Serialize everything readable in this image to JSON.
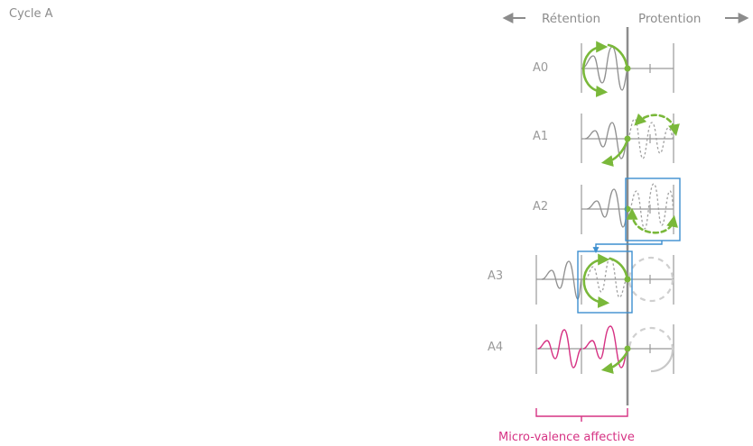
{
  "cycle_label": "Cycle A",
  "header": {
    "retention": "Rétention",
    "protention": "Protention"
  },
  "rows": [
    "A0",
    "A1",
    "A2",
    "A3",
    "A4"
  ],
  "bracket_label": "Micro-valence affective",
  "colors": {
    "loop": "#7ab83a",
    "highlight_box": "#3d8fcf",
    "affective": "#d63384",
    "axis": "#8c8c8c"
  }
}
